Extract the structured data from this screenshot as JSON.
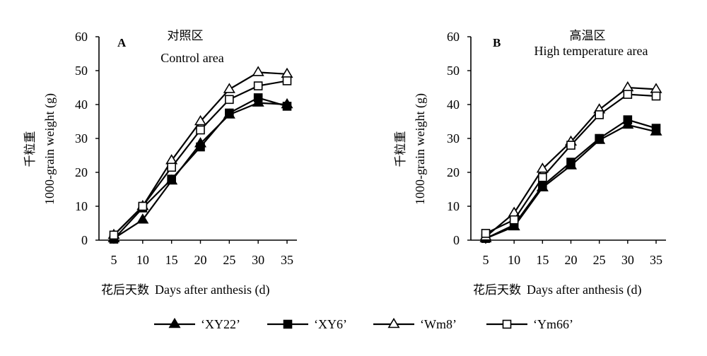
{
  "chart_data": [
    {
      "type": "line",
      "panel_letter": "A",
      "title_cn": "对照区",
      "title_en": "Control area",
      "ylabel_cn": "千粒重",
      "ylabel_en": "1000-grain weight (g)",
      "xlabel_cn": "花后天数",
      "xlabel_en": "Days after anthesis (d)",
      "x": [
        5,
        10,
        15,
        20,
        25,
        30,
        35
      ],
      "xlim": [
        5,
        35
      ],
      "ylim": [
        0,
        60
      ],
      "yticks": [
        0,
        10,
        20,
        30,
        40,
        50,
        60
      ],
      "grid": false,
      "series": [
        {
          "name": "‘XY22’",
          "marker": "triangle-filled",
          "values": [
            0.5,
            6,
            17.5,
            28.5,
            37,
            40.5,
            40
          ]
        },
        {
          "name": "‘XY6’",
          "marker": "square-filled",
          "values": [
            0.3,
            9.5,
            18,
            27.5,
            37.5,
            42,
            39.5
          ]
        },
        {
          "name": "‘Wm8’",
          "marker": "triangle-open",
          "values": [
            1.5,
            10,
            23.5,
            35,
            44.5,
            49.5,
            49
          ]
        },
        {
          "name": "‘Ym66’",
          "marker": "square-open",
          "values": [
            1.5,
            10,
            21.5,
            32.5,
            41.5,
            45.5,
            47
          ]
        }
      ]
    },
    {
      "type": "line",
      "panel_letter": "B",
      "title_cn": "高温区",
      "title_en": "High temperature area",
      "ylabel_cn": "千粒重",
      "ylabel_en": "1000-grain weight (g)",
      "xlabel_cn": "花后天数",
      "xlabel_en": "Days after anthesis (d)",
      "x": [
        5,
        10,
        15,
        20,
        25,
        30,
        35
      ],
      "xlim": [
        5,
        35
      ],
      "ylim": [
        0,
        60
      ],
      "yticks": [
        0,
        10,
        20,
        30,
        40,
        50,
        60
      ],
      "grid": false,
      "series": [
        {
          "name": "‘XY22’",
          "marker": "triangle-filled",
          "values": [
            0.5,
            4,
            15.5,
            22,
            29.5,
            34,
            32
          ]
        },
        {
          "name": "‘XY6’",
          "marker": "square-filled",
          "values": [
            0.5,
            4.5,
            16,
            23,
            30,
            35.5,
            33
          ]
        },
        {
          "name": "‘Wm8’",
          "marker": "triangle-open",
          "values": [
            1,
            8,
            21,
            29,
            38.5,
            45,
            44.5
          ]
        },
        {
          "name": "‘Ym66’",
          "marker": "square-open",
          "values": [
            2,
            6,
            18.5,
            28,
            37,
            43,
            42.5
          ]
        }
      ]
    }
  ],
  "legend": {
    "placement": "bottom",
    "items": [
      {
        "label": "‘XY22’",
        "marker": "triangle-filled"
      },
      {
        "label": "‘XY6’",
        "marker": "square-filled"
      },
      {
        "label": "‘Wm8’",
        "marker": "triangle-open"
      },
      {
        "label": "‘Ym66’",
        "marker": "square-open"
      }
    ]
  },
  "colors": {
    "ink": "#000000",
    "background": "#ffffff"
  }
}
